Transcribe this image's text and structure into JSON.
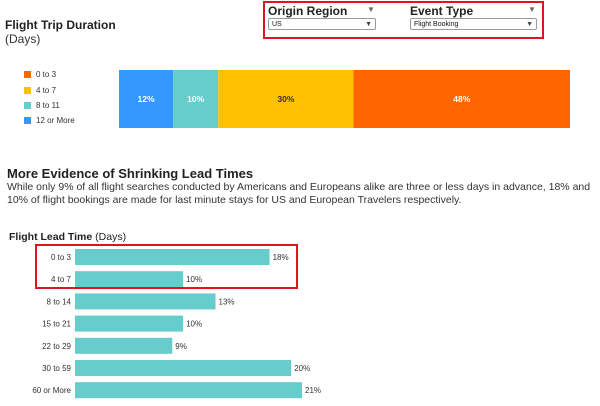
{
  "top_chart": {
    "title": "Flight Trip Duration",
    "title_units": "(Days)"
  },
  "filters": {
    "origin_region": {
      "label": "Origin Region",
      "value": "US"
    },
    "event_type": {
      "label": "Event Type",
      "value": "Flight Booking"
    }
  },
  "section": {
    "heading": "More Evidence of Shrinking Lead Times",
    "body": "While only 9% of all flight searches conducted by Americans and Europeans alike are three or less days in advance, 18% and 10% of flight bookings are made for last minute stays for US and European Travelers respectively."
  },
  "bottom_chart": {
    "title": "Flight Lead Time",
    "title_units": "(Days)"
  },
  "colors": {
    "bucket_0_3": "#ff6600",
    "bucket_4_7": "#ffc000",
    "bucket_8_11": "#66cccc",
    "bucket_12_more": "#3399ff",
    "lead_bar": "#66cccc",
    "highlight": "#e0141e"
  },
  "chart_data": [
    {
      "type": "bar",
      "orientation": "horizontal-stacked",
      "categories": [
        "0 to 3",
        "4 to 7",
        "8 to 11",
        "12 or More"
      ],
      "values": [
        48,
        30,
        10,
        12
      ],
      "labels": [
        "48%",
        "30%",
        "10%",
        "12%"
      ],
      "stack_order": [
        "12 or More",
        "8 to 11",
        "4 to 7",
        "0 to 3"
      ],
      "legend_position": "left",
      "unit": "%"
    },
    {
      "type": "bar",
      "orientation": "horizontal",
      "categories": [
        "0 to 3",
        "4 to 7",
        "8 to 14",
        "15 to 21",
        "22 to 29",
        "30 to 59",
        "60 or More"
      ],
      "values": [
        18,
        10,
        13,
        10,
        9,
        20,
        21
      ],
      "labels": [
        "18%",
        "10%",
        "13%",
        "10%",
        "9%",
        "20%",
        "21%"
      ],
      "unit": "%",
      "xlim": [
        0,
        21
      ],
      "highlighted_categories": [
        "0 to 3",
        "4 to 7"
      ]
    }
  ]
}
